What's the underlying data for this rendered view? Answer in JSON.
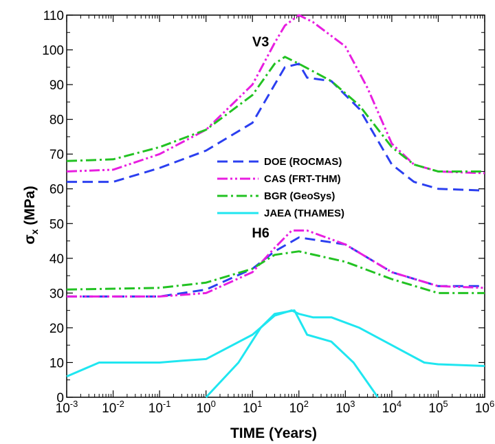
{
  "chart_data": {
    "type": "line",
    "xlabel": "TIME (Years)",
    "ylabel_symbol": "σ",
    "ylabel_subscript": "x",
    "ylabel_unit": " (MPa)",
    "xscale": "log",
    "xlim": [
      0.001,
      1000000
    ],
    "ylim": [
      0,
      110
    ],
    "grid": false,
    "legend_position": "center",
    "y_ticks": [
      0,
      10,
      20,
      30,
      40,
      50,
      60,
      70,
      80,
      90,
      100,
      110
    ],
    "x_ticks": [
      {
        "base": "10",
        "exp": "-3"
      },
      {
        "base": "10",
        "exp": "-2"
      },
      {
        "base": "10",
        "exp": "-1"
      },
      {
        "base": "10",
        "exp": "0"
      },
      {
        "base": "10",
        "exp": "1"
      },
      {
        "base": "10",
        "exp": "2"
      },
      {
        "base": "10",
        "exp": "3"
      },
      {
        "base": "10",
        "exp": "4"
      },
      {
        "base": "10",
        "exp": "5"
      },
      {
        "base": "10",
        "exp": "6"
      }
    ],
    "annotations": [
      {
        "text": "V3",
        "x": 15,
        "y": 101
      },
      {
        "text": "H6",
        "x": 15,
        "y": 46
      }
    ],
    "series": [
      {
        "name": "DOE (ROCMAS)",
        "color": "#2b3ff0",
        "dash": "dash",
        "segments": [
          [
            [
              0.001,
              62
            ],
            [
              0.01,
              62
            ],
            [
              0.1,
              66
            ],
            [
              1,
              71
            ],
            [
              10,
              79
            ],
            [
              30,
              90
            ],
            [
              50,
              95
            ],
            [
              100,
              96
            ],
            [
              150,
              92
            ],
            [
              500,
              91
            ],
            [
              2000,
              83
            ],
            [
              10000,
              67
            ],
            [
              30000,
              62
            ],
            [
              100000,
              60
            ],
            [
              1000000,
              59.5
            ]
          ],
          [
            [
              0.001,
              29
            ],
            [
              0.1,
              29
            ],
            [
              1,
              31
            ],
            [
              10,
              37
            ],
            [
              30,
              42
            ],
            [
              100,
              46
            ],
            [
              1000,
              44
            ],
            [
              10000,
              36
            ],
            [
              100000,
              32
            ],
            [
              1000000,
              32
            ]
          ]
        ]
      },
      {
        "name": "CAS (FRT-THM)",
        "color": "#e81ee0",
        "dash": "dashdotdot",
        "segments": [
          [
            [
              0.001,
              65
            ],
            [
              0.01,
              65.5
            ],
            [
              0.1,
              70
            ],
            [
              1,
              77
            ],
            [
              10,
              90
            ],
            [
              30,
              102
            ],
            [
              50,
              107
            ],
            [
              100,
              110
            ],
            [
              200,
              108
            ],
            [
              1000,
              101
            ],
            [
              3000,
              89
            ],
            [
              10000,
              73
            ],
            [
              30000,
              67
            ],
            [
              100000,
              65
            ],
            [
              1000000,
              64.5
            ]
          ],
          [
            [
              0.001,
              29
            ],
            [
              0.1,
              29
            ],
            [
              1,
              30
            ],
            [
              10,
              36
            ],
            [
              30,
              43
            ],
            [
              70,
              48
            ],
            [
              150,
              48
            ],
            [
              1000,
              44
            ],
            [
              10000,
              36
            ],
            [
              100000,
              32
            ],
            [
              1000000,
              31.5
            ]
          ]
        ]
      },
      {
        "name": "BGR (GeoSys)",
        "color": "#22c222",
        "dash": "dashdot",
        "segments": [
          [
            [
              0.001,
              68
            ],
            [
              0.01,
              68.5
            ],
            [
              0.1,
              72
            ],
            [
              1,
              77
            ],
            [
              10,
              87
            ],
            [
              30,
              96
            ],
            [
              50,
              98
            ],
            [
              100,
              96
            ],
            [
              500,
              91
            ],
            [
              2000,
              84
            ],
            [
              10000,
              72
            ],
            [
              30000,
              67
            ],
            [
              100000,
              65
            ],
            [
              1000000,
              65
            ]
          ],
          [
            [
              0.001,
              31
            ],
            [
              0.1,
              31.5
            ],
            [
              1,
              33
            ],
            [
              10,
              37
            ],
            [
              30,
              41
            ],
            [
              100,
              42
            ],
            [
              1000,
              39
            ],
            [
              10000,
              34
            ],
            [
              100000,
              30
            ],
            [
              1000000,
              30
            ]
          ]
        ]
      },
      {
        "name": "JAEA (THAMES)",
        "color": "#1fe6f0",
        "dash": "solid",
        "segments": [
          [
            [
              0.001,
              6
            ],
            [
              0.005,
              10
            ],
            [
              0.1,
              10
            ],
            [
              0.3,
              10.5
            ],
            [
              1,
              11
            ],
            [
              10,
              18
            ],
            [
              30,
              23.5
            ],
            [
              70,
              25
            ],
            [
              100,
              24
            ],
            [
              200,
              23
            ],
            [
              500,
              23
            ],
            [
              2000,
              20
            ],
            [
              10000,
              15
            ],
            [
              50000,
              10
            ],
            [
              100000,
              9.5
            ],
            [
              1000000,
              9
            ]
          ],
          [
            [
              1,
              0
            ],
            [
              5,
              10
            ],
            [
              15,
              20
            ],
            [
              30,
              24
            ],
            [
              80,
              25
            ],
            [
              150,
              18
            ],
            [
              500,
              16
            ],
            [
              1500,
              10
            ],
            [
              5000,
              0
            ]
          ]
        ]
      }
    ]
  }
}
